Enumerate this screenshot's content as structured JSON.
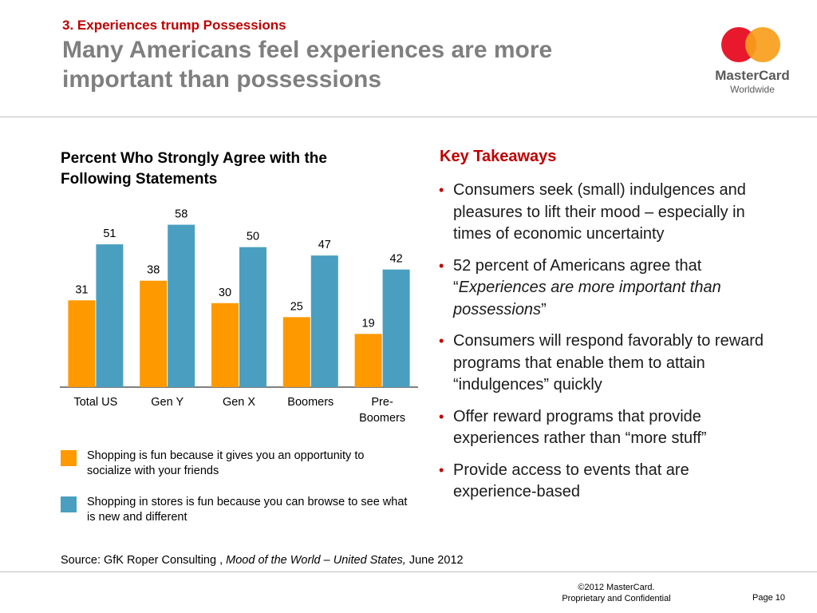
{
  "header": {
    "section_label": "3. Experiences trump Possessions",
    "title": "Many Americans feel experiences are more important than possessions"
  },
  "logo": {
    "brand": "MasterCard",
    "sub": "Worldwide",
    "colors": {
      "red": "#e8192c",
      "orange": "#f79e1b"
    }
  },
  "chart_title": "Percent Who Strongly Agree with the Following Statements",
  "chart_data": {
    "type": "bar",
    "title": "Percent Who Strongly Agree with the Following Statements",
    "categories": [
      "Total US",
      "Gen Y",
      "Gen X",
      "Boomers",
      "Pre-Boomers"
    ],
    "category_lines": [
      [
        "Total US"
      ],
      [
        "Gen Y"
      ],
      [
        "Gen X"
      ],
      [
        "Boomers"
      ],
      [
        "Pre-",
        "Boomers"
      ]
    ],
    "series": [
      {
        "name": "Shopping is fun because it gives you an opportunity to socialize with your friends",
        "values": [
          31,
          38,
          30,
          25,
          19
        ],
        "color": "#ff9900"
      },
      {
        "name": "Shopping in stores is fun because you can browse to see what is new and different",
        "values": [
          51,
          58,
          50,
          47,
          42
        ],
        "color": "#4a9fc0"
      }
    ],
    "ylim": [
      0,
      65
    ],
    "grid": false,
    "legend": "bottom"
  },
  "legend": [
    {
      "label": "Shopping is fun because it gives you an opportunity to socialize with your friends"
    },
    {
      "label": "Shopping in stores is fun because you can browse to see what is new and different"
    }
  ],
  "takeaways": {
    "title": "Key Takeaways",
    "items": [
      {
        "text": "Consumers seek (small) indulgences and pleasures to lift their mood – especially in times of economic uncertainty"
      },
      {
        "pre": "52 percent of Americans agree that “",
        "em": "Experiences are more important than possessions",
        "post": "”"
      },
      {
        "text": "Consumers will respond favorably to reward programs that enable them to attain “indulgences” quickly"
      },
      {
        "text": "Offer reward programs that provide experiences rather than “more stuff”"
      },
      {
        "text": "Provide access to events that are experience-based"
      }
    ]
  },
  "source": {
    "pre": "Source: GfK Roper Consulting , ",
    "em": "Mood of the World – United States,",
    "post": " June 2012"
  },
  "footer": {
    "copyright": "©2012 MasterCard.",
    "confidential": "Proprietary and Confidential",
    "page": "Page 10"
  }
}
